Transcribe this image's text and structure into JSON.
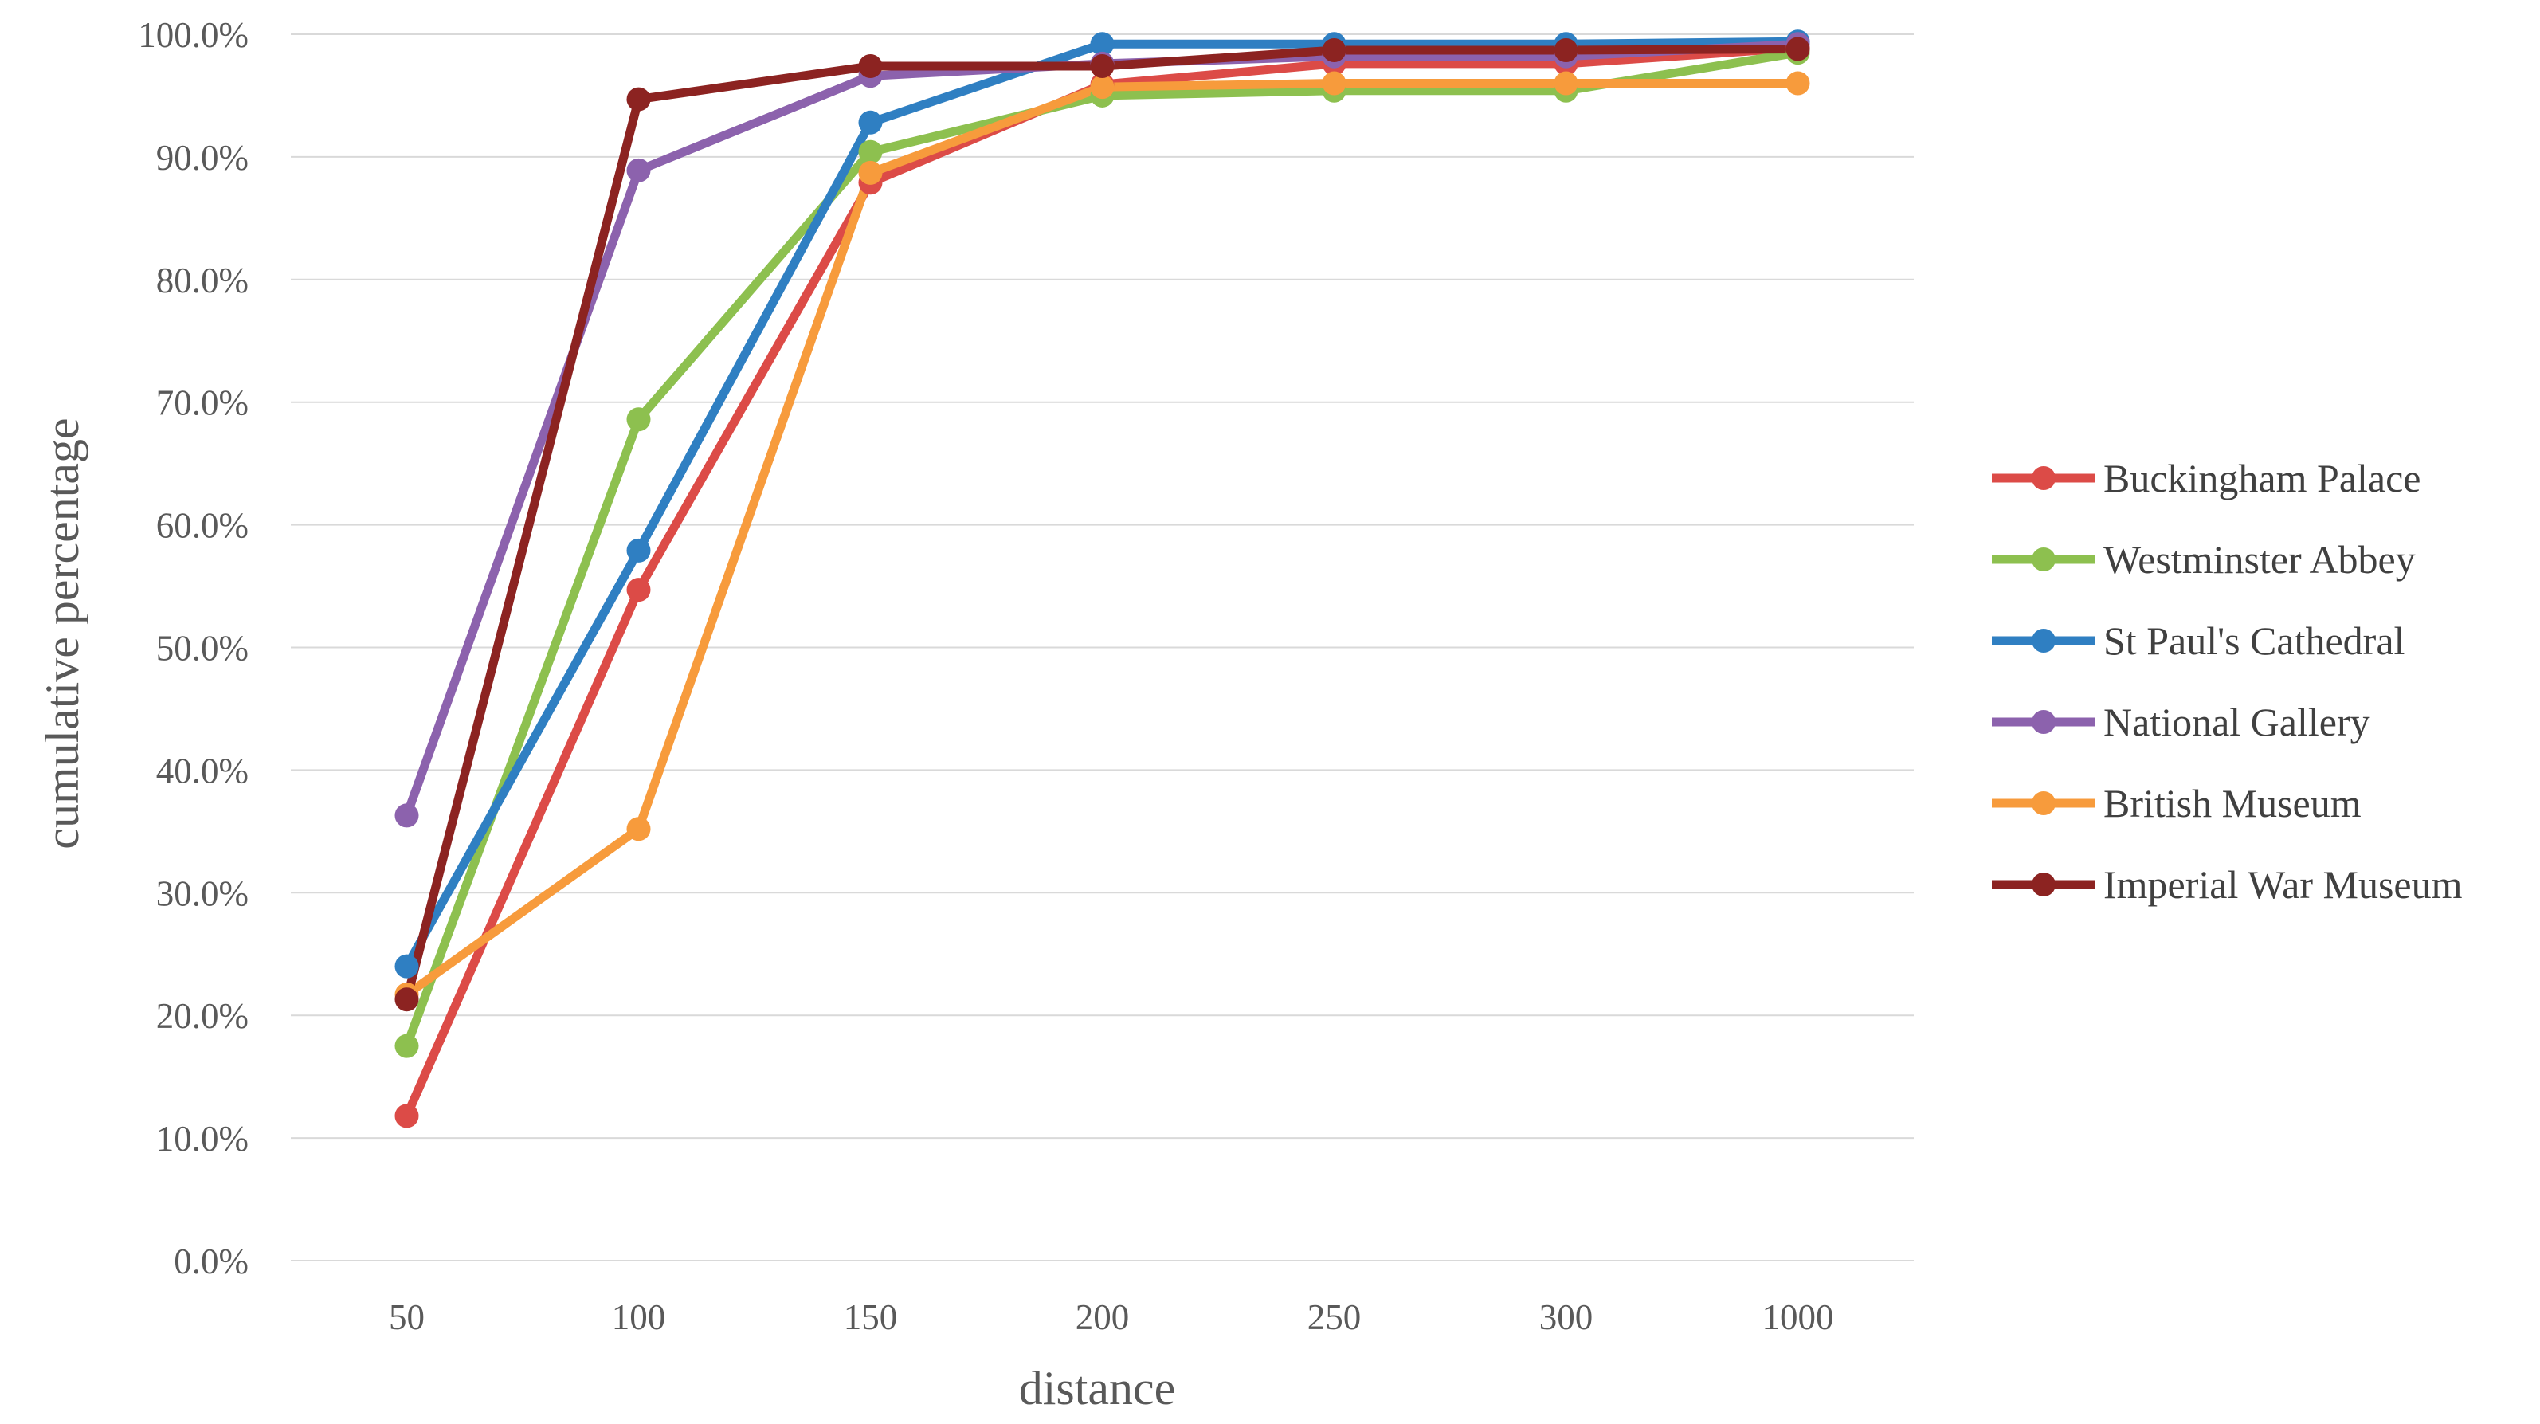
{
  "chart_data": {
    "type": "line",
    "title": "",
    "xlabel": "distance",
    "ylabel": "cumulative percentage",
    "categories": [
      "50",
      "100",
      "150",
      "200",
      "250",
      "300",
      "1000"
    ],
    "ylim": [
      0,
      100
    ],
    "y_ticks": [
      0,
      10,
      20,
      30,
      40,
      50,
      60,
      70,
      80,
      90,
      100
    ],
    "y_tick_labels": [
      "0.0%",
      "10.0%",
      "20.0%",
      "30.0%",
      "40.0%",
      "50.0%",
      "60.0%",
      "70.0%",
      "80.0%",
      "90.0%",
      "100.0%"
    ],
    "grid": "horizontal",
    "legend_position": "right",
    "series": [
      {
        "name": "Buckingham Palace",
        "color": "#dc4b47",
        "values": [
          11.8,
          54.7,
          87.9,
          95.9,
          97.6,
          97.6,
          98.9
        ]
      },
      {
        "name": "Westminster Abbey",
        "color": "#8dc04f",
        "values": [
          17.5,
          68.6,
          90.4,
          95.0,
          95.4,
          95.4,
          98.5
        ]
      },
      {
        "name": "St Paul's Cathedral",
        "color": "#2f7fc2",
        "values": [
          24.0,
          57.9,
          92.8,
          99.2,
          99.2,
          99.2,
          99.4
        ]
      },
      {
        "name": "National Gallery",
        "color": "#8c62ad",
        "values": [
          36.3,
          88.9,
          96.6,
          97.6,
          98.2,
          98.2,
          99.2
        ]
      },
      {
        "name": "British Museum",
        "color": "#f79b3c",
        "values": [
          21.7,
          35.2,
          88.7,
          95.7,
          96.0,
          96.0,
          96.0
        ]
      },
      {
        "name": "Imperial War Museum",
        "color": "#8c2321",
        "values": [
          21.3,
          94.7,
          97.4,
          97.4,
          98.7,
          98.7,
          98.8
        ]
      }
    ]
  }
}
